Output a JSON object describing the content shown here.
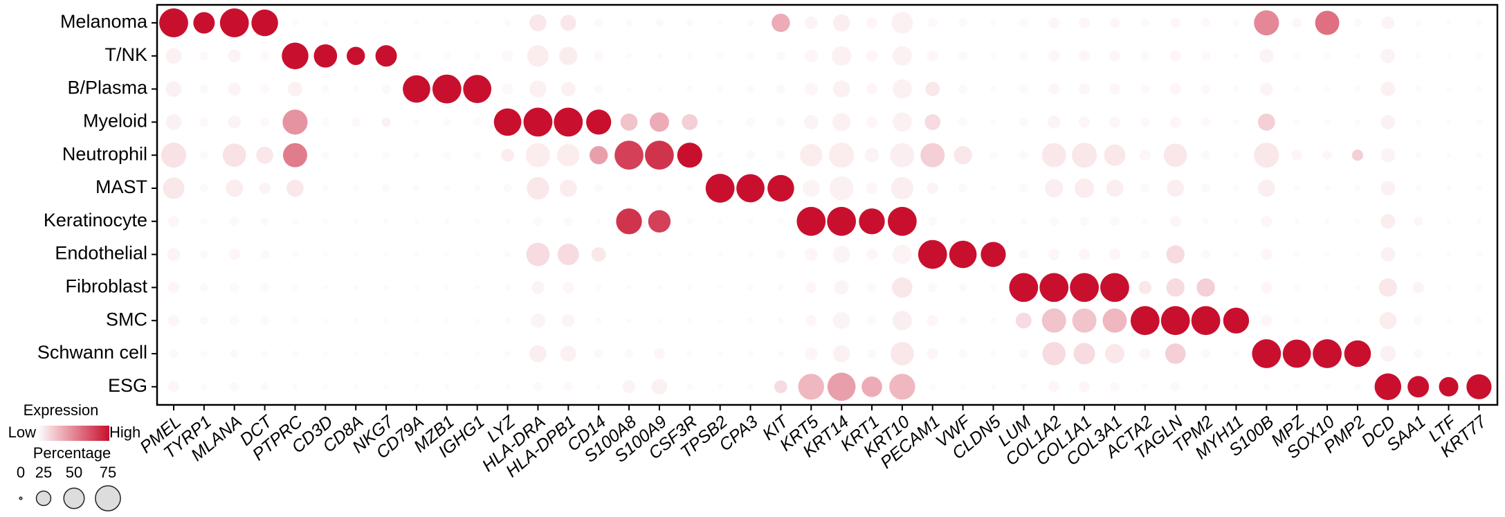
{
  "chart_data": {
    "type": "dotplot",
    "legend_expression_title": "Expression",
    "legend_low": "Low",
    "legend_high": "High",
    "legend_percentage_title": "Percentage",
    "percentage_ticks": [
      0,
      25,
      50,
      75
    ],
    "expression_lim": [
      0,
      1
    ],
    "color_low": "#ffffff",
    "color_high": "#c8102e",
    "rows": [
      "Melanoma",
      "T/NK",
      "B/Plasma",
      "Myeloid",
      "Neutrophil",
      "MAST",
      "Keratinocyte",
      "Endothelial",
      "Fibroblast",
      "SMC",
      "Schwann cell",
      "ESG"
    ],
    "genes": [
      "PMEL",
      "TYRP1",
      "MLANA",
      "DCT",
      "PTPRC",
      "CD3D",
      "CD8A",
      "NKG7",
      "CD79A",
      "MZB1",
      "IGHG1",
      "LYZ",
      "HLA-DRA",
      "HLA-DPB1",
      "CD14",
      "S100A8",
      "S100A9",
      "CSF3R",
      "TPSB2",
      "CPA3",
      "KIT",
      "KRT5",
      "KRT14",
      "KRT1",
      "KRT10",
      "PECAM1",
      "VWF",
      "CLDN5",
      "LUM",
      "COL1A2",
      "COL1A1",
      "COL3A1",
      "ACTA2",
      "TAGLN",
      "TPM2",
      "MYH11",
      "S100B",
      "MPZ",
      "SOX10",
      "PMP2",
      "DCD",
      "SAA1",
      "LTF",
      "KRT77"
    ],
    "percentage": [
      [
        100,
        55,
        100,
        85,
        5,
        5,
        3,
        3,
        3,
        3,
        3,
        5,
        35,
        30,
        8,
        5,
        8,
        5,
        3,
        5,
        40,
        20,
        35,
        15,
        55,
        12,
        8,
        5,
        10,
        15,
        15,
        12,
        8,
        12,
        10,
        5,
        75,
        12,
        70,
        8,
        20,
        5,
        3,
        5
      ],
      [
        30,
        10,
        20,
        10,
        85,
        65,
        40,
        55,
        5,
        8,
        8,
        15,
        55,
        40,
        10,
        3,
        3,
        5,
        5,
        8,
        10,
        20,
        45,
        15,
        45,
        15,
        10,
        5,
        10,
        15,
        15,
        15,
        10,
        15,
        10,
        5,
        25,
        5,
        5,
        5,
        25,
        5,
        3,
        5
      ],
      [
        30,
        10,
        20,
        10,
        25,
        8,
        5,
        10,
        90,
        100,
        95,
        15,
        35,
        25,
        8,
        3,
        3,
        5,
        5,
        8,
        10,
        20,
        35,
        15,
        45,
        25,
        10,
        5,
        10,
        15,
        15,
        15,
        10,
        15,
        10,
        5,
        20,
        5,
        5,
        5,
        25,
        5,
        3,
        5
      ],
      [
        30,
        10,
        20,
        10,
        75,
        8,
        10,
        10,
        5,
        8,
        8,
        90,
        100,
        100,
        75,
        35,
        45,
        30,
        5,
        10,
        10,
        25,
        40,
        15,
        45,
        30,
        10,
        5,
        10,
        20,
        15,
        15,
        10,
        15,
        10,
        5,
        35,
        5,
        5,
        5,
        25,
        5,
        3,
        5
      ],
      [
        75,
        8,
        65,
        35,
        70,
        8,
        5,
        8,
        5,
        8,
        8,
        20,
        70,
        60,
        40,
        100,
        100,
        75,
        5,
        10,
        10,
        60,
        75,
        25,
        70,
        70,
        40,
        8,
        10,
        70,
        75,
        55,
        15,
        65,
        10,
        5,
        75,
        15,
        10,
        15,
        25,
        5,
        3,
        5
      ],
      [
        55,
        8,
        35,
        15,
        35,
        5,
        5,
        8,
        5,
        5,
        5,
        8,
        60,
        35,
        8,
        5,
        5,
        5,
        100,
        95,
        85,
        35,
        70,
        15,
        60,
        15,
        10,
        5,
        10,
        40,
        45,
        35,
        10,
        35,
        10,
        5,
        35,
        5,
        5,
        5,
        25,
        5,
        3,
        5
      ],
      [
        15,
        5,
        10,
        8,
        5,
        3,
        3,
        3,
        3,
        3,
        3,
        3,
        10,
        10,
        3,
        80,
        60,
        5,
        3,
        5,
        5,
        100,
        100,
        80,
        100,
        10,
        5,
        3,
        5,
        10,
        10,
        10,
        5,
        15,
        5,
        3,
        15,
        3,
        3,
        3,
        25,
        10,
        3,
        3
      ],
      [
        20,
        8,
        15,
        10,
        5,
        3,
        3,
        3,
        3,
        3,
        3,
        5,
        65,
        55,
        25,
        3,
        3,
        3,
        3,
        5,
        10,
        20,
        35,
        15,
        45,
        100,
        90,
        75,
        10,
        15,
        15,
        15,
        10,
        40,
        10,
        5,
        15,
        5,
        3,
        3,
        25,
        5,
        3,
        5
      ],
      [
        15,
        8,
        10,
        10,
        5,
        3,
        3,
        3,
        3,
        3,
        3,
        5,
        20,
        15,
        5,
        3,
        3,
        3,
        3,
        5,
        5,
        15,
        25,
        10,
        50,
        10,
        8,
        5,
        100,
        100,
        100,
        100,
        20,
        40,
        40,
        5,
        15,
        5,
        3,
        3,
        40,
        15,
        3,
        5
      ],
      [
        15,
        8,
        10,
        10,
        5,
        3,
        3,
        3,
        3,
        3,
        3,
        5,
        25,
        20,
        5,
        3,
        3,
        3,
        3,
        5,
        5,
        15,
        35,
        10,
        45,
        15,
        8,
        5,
        30,
        70,
        70,
        70,
        100,
        100,
        100,
        80,
        15,
        5,
        3,
        3,
        35,
        10,
        3,
        5
      ],
      [
        10,
        5,
        8,
        5,
        5,
        3,
        3,
        3,
        3,
        3,
        3,
        5,
        35,
        30,
        10,
        8,
        15,
        5,
        3,
        5,
        5,
        20,
        35,
        10,
        65,
        15,
        8,
        5,
        10,
        65,
        55,
        45,
        15,
        50,
        10,
        5,
        100,
        95,
        100,
        85,
        30,
        10,
        3,
        5
      ],
      [
        15,
        5,
        10,
        8,
        3,
        3,
        3,
        3,
        3,
        3,
        3,
        3,
        10,
        10,
        3,
        20,
        30,
        5,
        3,
        5,
        20,
        80,
        95,
        50,
        80,
        5,
        3,
        3,
        5,
        15,
        15,
        10,
        5,
        10,
        5,
        3,
        5,
        5,
        5,
        5,
        85,
        55,
        45,
        75
      ]
    ],
    "expression": [
      [
        1,
        1,
        1,
        1,
        0.02,
        0.02,
        0.02,
        0.02,
        0.02,
        0.02,
        0.02,
        0.03,
        0.1,
        0.1,
        0.03,
        0.03,
        0.03,
        0.03,
        0.02,
        0.03,
        0.35,
        0.05,
        0.07,
        0.04,
        0.06,
        0.03,
        0.03,
        0.02,
        0.03,
        0.04,
        0.04,
        0.04,
        0.03,
        0.04,
        0.03,
        0.02,
        0.5,
        0.04,
        0.6,
        0.03,
        0.05,
        0.02,
        0.02,
        0.02
      ],
      [
        0.06,
        0.03,
        0.05,
        0.03,
        1,
        1,
        1,
        1,
        0.02,
        0.02,
        0.02,
        0.03,
        0.08,
        0.08,
        0.03,
        0.02,
        0.02,
        0.02,
        0.02,
        0.02,
        0.03,
        0.04,
        0.06,
        0.04,
        0.06,
        0.04,
        0.03,
        0.02,
        0.03,
        0.04,
        0.04,
        0.04,
        0.03,
        0.04,
        0.03,
        0.02,
        0.05,
        0.02,
        0.02,
        0.02,
        0.05,
        0.02,
        0.02,
        0.02
      ],
      [
        0.06,
        0.03,
        0.05,
        0.03,
        0.06,
        0.02,
        0.02,
        0.03,
        1,
        1,
        1,
        0.03,
        0.06,
        0.06,
        0.03,
        0.02,
        0.02,
        0.02,
        0.02,
        0.02,
        0.03,
        0.04,
        0.06,
        0.04,
        0.06,
        0.1,
        0.03,
        0.02,
        0.03,
        0.04,
        0.04,
        0.04,
        0.03,
        0.04,
        0.03,
        0.02,
        0.05,
        0.02,
        0.02,
        0.02,
        0.06,
        0.02,
        0.02,
        0.02
      ],
      [
        0.06,
        0.03,
        0.05,
        0.03,
        0.45,
        0.02,
        0.03,
        0.06,
        0.02,
        0.02,
        0.02,
        1,
        1,
        1,
        1,
        0.25,
        0.35,
        0.2,
        0.02,
        0.03,
        0.03,
        0.05,
        0.06,
        0.04,
        0.06,
        0.15,
        0.03,
        0.02,
        0.03,
        0.05,
        0.04,
        0.04,
        0.03,
        0.04,
        0.03,
        0.02,
        0.2,
        0.02,
        0.02,
        0.02,
        0.06,
        0.02,
        0.02,
        0.02
      ],
      [
        0.12,
        0.03,
        0.12,
        0.1,
        0.55,
        0.02,
        0.02,
        0.02,
        0.02,
        0.02,
        0.02,
        0.08,
        0.08,
        0.08,
        0.4,
        0.8,
        0.85,
        1,
        0.02,
        0.03,
        0.03,
        0.08,
        0.08,
        0.05,
        0.07,
        0.2,
        0.1,
        0.02,
        0.03,
        0.1,
        0.1,
        0.1,
        0.04,
        0.1,
        0.03,
        0.02,
        0.1,
        0.04,
        0.04,
        0.2,
        0.05,
        0.02,
        0.02,
        0.02
      ],
      [
        0.1,
        0.03,
        0.08,
        0.05,
        0.1,
        0.02,
        0.02,
        0.03,
        0.02,
        0.02,
        0.02,
        0.03,
        0.1,
        0.08,
        0.03,
        0.02,
        0.02,
        0.02,
        1,
        1,
        1,
        0.05,
        0.06,
        0.04,
        0.07,
        0.05,
        0.03,
        0.02,
        0.03,
        0.07,
        0.08,
        0.07,
        0.03,
        0.07,
        0.03,
        0.02,
        0.07,
        0.02,
        0.02,
        0.02,
        0.06,
        0.02,
        0.02,
        0.02
      ],
      [
        0.04,
        0.02,
        0.03,
        0.03,
        0.02,
        0.02,
        0.02,
        0.02,
        0.02,
        0.02,
        0.02,
        0.02,
        0.03,
        0.03,
        0.02,
        0.85,
        0.8,
        0.02,
        0.02,
        0.02,
        0.02,
        1,
        1,
        1,
        1,
        0.03,
        0.02,
        0.02,
        0.02,
        0.03,
        0.03,
        0.03,
        0.02,
        0.04,
        0.02,
        0.02,
        0.04,
        0.02,
        0.02,
        0.02,
        0.08,
        0.04,
        0.02,
        0.02
      ],
      [
        0.05,
        0.03,
        0.04,
        0.03,
        0.02,
        0.02,
        0.02,
        0.02,
        0.02,
        0.02,
        0.02,
        0.02,
        0.15,
        0.15,
        0.1,
        0.02,
        0.02,
        0.02,
        0.02,
        0.02,
        0.03,
        0.04,
        0.05,
        0.04,
        0.05,
        1,
        1,
        1,
        0.03,
        0.04,
        0.04,
        0.04,
        0.03,
        0.15,
        0.03,
        0.02,
        0.04,
        0.02,
        0.02,
        0.02,
        0.06,
        0.02,
        0.02,
        0.02
      ],
      [
        0.04,
        0.03,
        0.03,
        0.03,
        0.02,
        0.02,
        0.02,
        0.02,
        0.02,
        0.02,
        0.02,
        0.02,
        0.05,
        0.04,
        0.02,
        0.02,
        0.02,
        0.02,
        0.02,
        0.02,
        0.02,
        0.04,
        0.05,
        0.03,
        0.1,
        0.03,
        0.03,
        0.02,
        1,
        1,
        1,
        1,
        0.1,
        0.15,
        0.2,
        0.02,
        0.04,
        0.02,
        0.02,
        0.02,
        0.1,
        0.05,
        0.02,
        0.02
      ],
      [
        0.04,
        0.03,
        0.03,
        0.03,
        0.02,
        0.02,
        0.02,
        0.02,
        0.02,
        0.02,
        0.02,
        0.02,
        0.05,
        0.05,
        0.02,
        0.02,
        0.02,
        0.02,
        0.02,
        0.02,
        0.02,
        0.04,
        0.05,
        0.03,
        0.07,
        0.04,
        0.03,
        0.02,
        0.15,
        0.25,
        0.25,
        0.3,
        1,
        1,
        1,
        1,
        0.04,
        0.02,
        0.02,
        0.02,
        0.08,
        0.03,
        0.02,
        0.02
      ],
      [
        0.03,
        0.02,
        0.03,
        0.02,
        0.02,
        0.02,
        0.02,
        0.02,
        0.02,
        0.02,
        0.02,
        0.02,
        0.07,
        0.06,
        0.03,
        0.03,
        0.04,
        0.02,
        0.02,
        0.02,
        0.02,
        0.04,
        0.06,
        0.03,
        0.1,
        0.04,
        0.03,
        0.02,
        0.03,
        0.15,
        0.15,
        0.1,
        0.04,
        0.2,
        0.03,
        0.02,
        1,
        1,
        1,
        1,
        0.06,
        0.03,
        0.02,
        0.02
      ],
      [
        0.04,
        0.02,
        0.03,
        0.03,
        0.02,
        0.02,
        0.02,
        0.02,
        0.02,
        0.02,
        0.02,
        0.02,
        0.03,
        0.03,
        0.02,
        0.05,
        0.06,
        0.02,
        0.02,
        0.02,
        0.15,
        0.3,
        0.4,
        0.35,
        0.3,
        0.02,
        0.02,
        0.02,
        0.02,
        0.04,
        0.04,
        0.03,
        0.02,
        0.03,
        0.02,
        0.02,
        0.02,
        0.02,
        0.02,
        0.02,
        1,
        1,
        1,
        1
      ]
    ]
  }
}
